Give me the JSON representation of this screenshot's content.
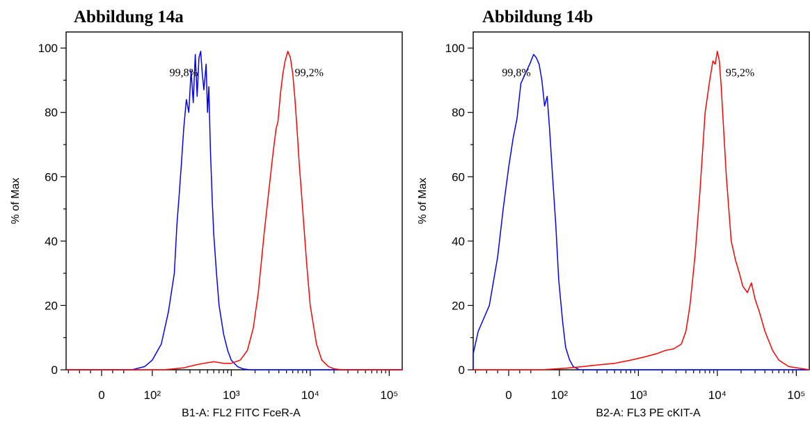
{
  "chart_data": [
    {
      "type": "line",
      "title": "Abbildung 14a",
      "xlabel": "B1-A: FL2 FITC FceR-A",
      "ylabel": "% of Max",
      "ylim": [
        0,
        105
      ],
      "xscale": "biexponential",
      "xlim": [
        -150,
        250000
      ],
      "x_ticks": [
        "0",
        "10²",
        "10³",
        "10⁴",
        "10⁵"
      ],
      "y_ticks": [
        0,
        20,
        40,
        60,
        80,
        100
      ],
      "series": [
        {
          "color": "#0000ff",
          "x": [
            -150,
            55,
            80,
            100,
            130,
            160,
            190,
            205,
            220,
            235,
            250,
            270,
            290,
            310,
            330,
            350,
            370,
            390,
            410,
            430,
            450,
            480,
            500,
            520,
            545,
            560,
            575,
            600,
            650,
            700,
            800,
            900,
            1000,
            1200,
            1400,
            1700,
            2100,
            250000
          ],
          "values": [
            0,
            0,
            1,
            3,
            8,
            18,
            30,
            45,
            55,
            65,
            75,
            84,
            80,
            93,
            83,
            98,
            85,
            97,
            99,
            92,
            87,
            95,
            80,
            88,
            68,
            60,
            52,
            42,
            30,
            20,
            11,
            6,
            3,
            1,
            0.3,
            0,
            0,
            0
          ]
        },
        {
          "color": "#ff0000",
          "x": [
            -150,
            140,
            250,
            350,
            450,
            600,
            800,
            1000,
            1300,
            1600,
            1900,
            2200,
            2600,
            3000,
            3400,
            3700,
            3900,
            4200,
            4500,
            4800,
            5200,
            5600,
            6000,
            6400,
            6800,
            7200,
            8000,
            9000,
            10000,
            12000,
            14000,
            17000,
            20000,
            25000,
            250000
          ],
          "values": [
            0,
            0,
            0.6,
            1.5,
            2,
            2.5,
            2,
            2,
            3,
            6,
            13,
            24,
            42,
            56,
            68,
            75,
            77,
            86,
            92,
            96,
            99,
            97,
            92,
            84,
            75,
            65,
            50,
            33,
            20,
            8,
            3,
            1,
            0.3,
            0,
            0
          ]
        }
      ],
      "annotations": [
        {
          "text": "99,8%",
          "x": 450,
          "y": 93
        },
        {
          "text": "99,2%",
          "x": 5000,
          "y": 93
        }
      ]
    },
    {
      "type": "line",
      "title": "Abbildung 14b",
      "xlabel": "B2-A: FL3 PE cKIT-A",
      "ylabel": "% of Max",
      "ylim": [
        0,
        105
      ],
      "xscale": "biexponential",
      "xlim": [
        -150,
        250000
      ],
      "x_ticks": [
        "0",
        "10²",
        "10³",
        "10⁴",
        "10⁵"
      ],
      "y_ticks": [
        0,
        20,
        40,
        60,
        80,
        100
      ],
      "series": [
        {
          "color": "#0000ff",
          "x": [
            -150,
            -110,
            -80,
            -55,
            -35,
            -20,
            -10,
            0,
            8,
            15,
            22,
            30,
            38,
            45,
            50,
            55,
            60,
            65,
            70,
            75,
            82,
            90,
            98,
            110,
            120,
            135,
            150,
            180,
            250,
            400,
            250000
          ],
          "values": [
            0,
            2,
            5,
            12,
            20,
            35,
            50,
            63,
            72,
            78,
            89,
            92,
            95,
            98,
            97,
            95,
            90,
            82,
            85,
            75,
            60,
            45,
            28,
            15,
            7,
            3,
            1,
            0,
            0,
            0,
            0
          ],
          "note": ""
        },
        {
          "color": "#ff0000",
          "x": [
            -150,
            60,
            120,
            200,
            300,
            500,
            800,
            1200,
            1700,
            2200,
            2800,
            3500,
            4000,
            4500,
            5200,
            6000,
            7000,
            8000,
            8800,
            9400,
            10000,
            10600,
            11200,
            12000,
            13000,
            15000,
            17000,
            19000,
            21000,
            24000,
            27000,
            30000,
            34000,
            40000,
            50000,
            60000,
            80000,
            250000
          ],
          "values": [
            0,
            0,
            0.5,
            1,
            1.5,
            2,
            3,
            4,
            5,
            6,
            6.5,
            8,
            12,
            20,
            35,
            55,
            80,
            90,
            96,
            95,
            99,
            96,
            88,
            75,
            60,
            40,
            34,
            30,
            26,
            24,
            27,
            22,
            18,
            12,
            6,
            3,
            1,
            0
          ]
        }
      ],
      "annotations": [
        {
          "text": "99,8%",
          "x": 50,
          "y": 93
        },
        {
          "text": "95,2%",
          "x": 10000,
          "y": 93
        }
      ]
    }
  ]
}
